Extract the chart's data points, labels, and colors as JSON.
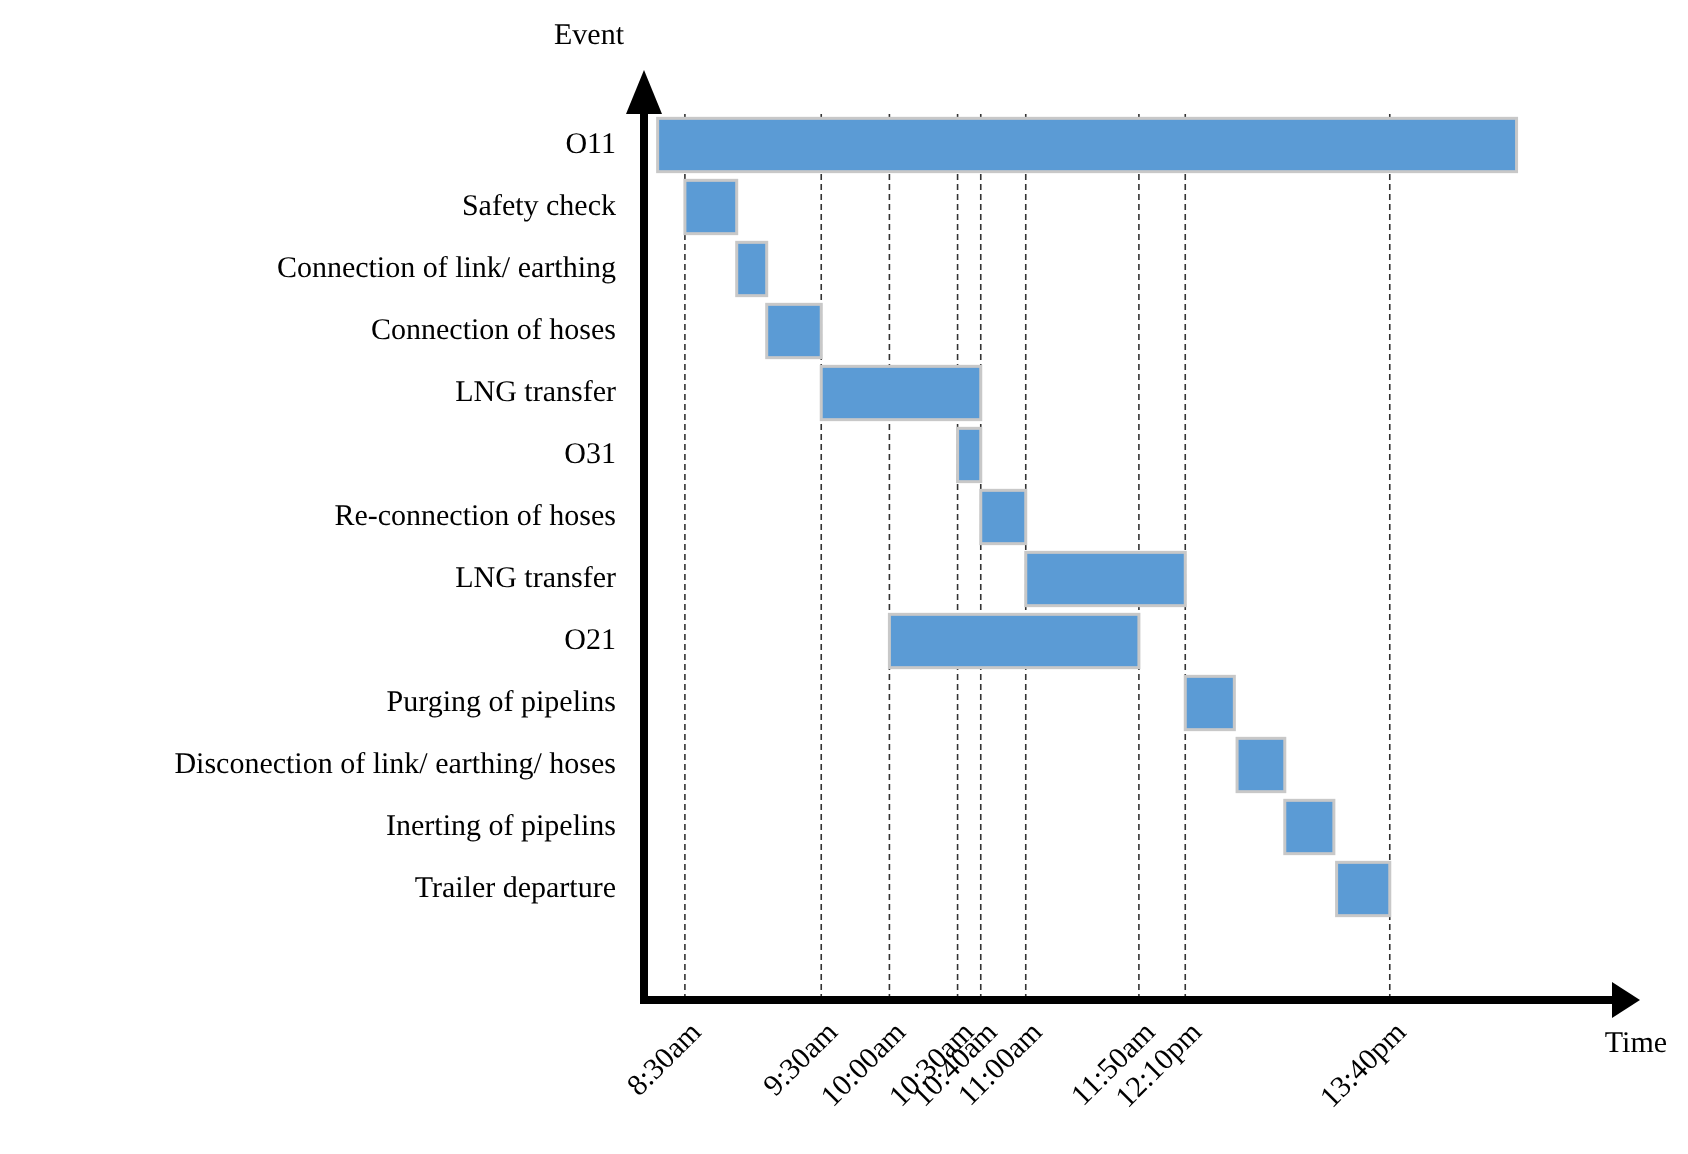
{
  "chart_data": {
    "type": "bar",
    "orientation": "horizontal",
    "xlabel": "Time",
    "ylabel": "Event",
    "categories": [
      "O11",
      "Safety check",
      "Connection of link/ earthing",
      "Connection of hoses",
      "LNG transfer",
      "O31",
      "Re-connection of hoses",
      "LNG transfer",
      "O21",
      "Purging of pipelins",
      "Disconection of link/ earthing/ hoses",
      "Inerting of pipelins",
      "Trailer departure"
    ],
    "base": [
      8.3,
      8.5,
      8.88,
      9.1,
      9.5,
      10.5,
      10.67,
      11,
      10,
      12.17,
      12.55,
      12.9,
      13.28
    ],
    "values": [
      6.3,
      0.38,
      0.22,
      0.4,
      1.17,
      0.17,
      0.33,
      1.17,
      1.83,
      0.36,
      0.35,
      0.36,
      0.39
    ],
    "color": "#5b9bd5",
    "xlim": [
      8.2,
      15.3
    ],
    "xticks": [
      {
        "value": 8.5,
        "label": "8:30am"
      },
      {
        "value": 9.5,
        "label": "9:30am"
      },
      {
        "value": 10,
        "label": "10:00am"
      },
      {
        "value": 10.5,
        "label": "10:30am"
      },
      {
        "value": 10.67,
        "label": "10:40am"
      },
      {
        "value": 11,
        "label": "11:00am"
      },
      {
        "value": 11.83,
        "label": "11:50am"
      },
      {
        "value": 12.17,
        "label": "12:10pm"
      },
      {
        "value": 13.67,
        "label": "13:40pm"
      }
    ],
    "grid": "x",
    "line_style": "dashed"
  }
}
